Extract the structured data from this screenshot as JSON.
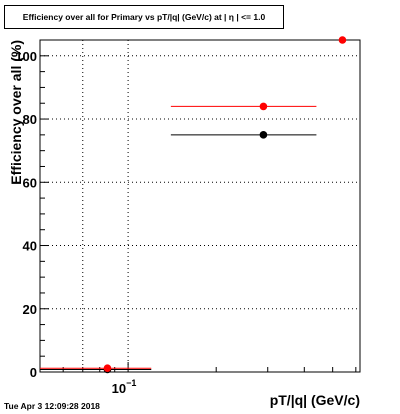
{
  "chart_data": {
    "type": "scatter",
    "title": "Efficiency over all for Primary vs pT/|q| (GeV/c) at | η | <= 1.0",
    "xlabel": "pT/|q| (GeV/c)",
    "ylabel": "Efficiency over all (%)",
    "x_scale": "log",
    "xlim": [
      0.05,
      0.62
    ],
    "ylim": [
      0,
      105
    ],
    "y_ticks": [
      0,
      20,
      40,
      60,
      80,
      100
    ],
    "x_tick_label": "10^-1",
    "grid": true,
    "series": [
      {
        "color": "#000000",
        "points": [
          {
            "x": 0.085,
            "xerr_low": 0.035,
            "xerr_high": 0.035,
            "y": 0.8
          },
          {
            "x": 0.29,
            "xerr_low": 0.15,
            "xerr_high": 0.15,
            "y": 75
          }
        ]
      },
      {
        "color": "#ff0000",
        "points": [
          {
            "x": 0.085,
            "xerr_low": 0.035,
            "xerr_high": 0.035,
            "y": 1.2
          },
          {
            "x": 0.29,
            "xerr_low": 0.15,
            "xerr_high": 0.15,
            "y": 84
          },
          {
            "x": 0.54,
            "y": 105
          }
        ]
      }
    ]
  },
  "footer": {
    "timestamp": "Tue Apr  3 12:09:28 2018"
  }
}
